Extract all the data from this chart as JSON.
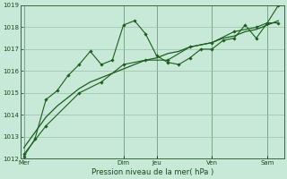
{
  "background_color": "#c8e8d8",
  "plot_bg_color": "#c8e8d8",
  "grid_color": "#9abfaa",
  "line_color": "#1a5e1a",
  "xlabel": "Pression niveau de la mer( hPa )",
  "ylim": [
    1012,
    1019
  ],
  "yticks": [
    1012,
    1013,
    1014,
    1015,
    1016,
    1017,
    1018,
    1019
  ],
  "day_labels": [
    "Mer",
    "Dim",
    "Jeu",
    "Ven",
    "Sam"
  ],
  "day_x": [
    0,
    9,
    12,
    17,
    22
  ],
  "vline_x": [
    0,
    9,
    12,
    17,
    22
  ],
  "xlim": [
    -0.3,
    23.5
  ],
  "series1_x": [
    0,
    1,
    2,
    3,
    4,
    5,
    6,
    7,
    8,
    9,
    10,
    11,
    12,
    13,
    14,
    15,
    16,
    17,
    18,
    19,
    20,
    21,
    22,
    23
  ],
  "series1_y": [
    1012.1,
    1012.9,
    1014.7,
    1015.1,
    1015.8,
    1016.3,
    1016.9,
    1016.3,
    1016.5,
    1018.1,
    1018.3,
    1017.7,
    1016.7,
    1016.4,
    1016.3,
    1016.6,
    1017.0,
    1017.0,
    1017.4,
    1017.5,
    1018.1,
    1017.5,
    1018.2,
    1018.2
  ],
  "series2_x": [
    0,
    1,
    2,
    3,
    4,
    5,
    6,
    7,
    8,
    9,
    10,
    11,
    12,
    13,
    14,
    15,
    16,
    17,
    18,
    19,
    20,
    21,
    22,
    23
  ],
  "series2_y": [
    1012.5,
    1013.2,
    1013.9,
    1014.4,
    1014.8,
    1015.2,
    1015.5,
    1015.7,
    1015.9,
    1016.1,
    1016.3,
    1016.5,
    1016.6,
    1016.8,
    1016.9,
    1017.1,
    1017.2,
    1017.3,
    1017.5,
    1017.6,
    1017.8,
    1017.9,
    1018.1,
    1018.3
  ],
  "series3_x": [
    0,
    2,
    5,
    7,
    9,
    11,
    13,
    15,
    17,
    19,
    21,
    22,
    23
  ],
  "series3_y": [
    1012.2,
    1013.5,
    1015.0,
    1015.5,
    1016.3,
    1016.5,
    1016.5,
    1017.1,
    1017.3,
    1017.8,
    1018.0,
    1018.2,
    1019.0
  ]
}
